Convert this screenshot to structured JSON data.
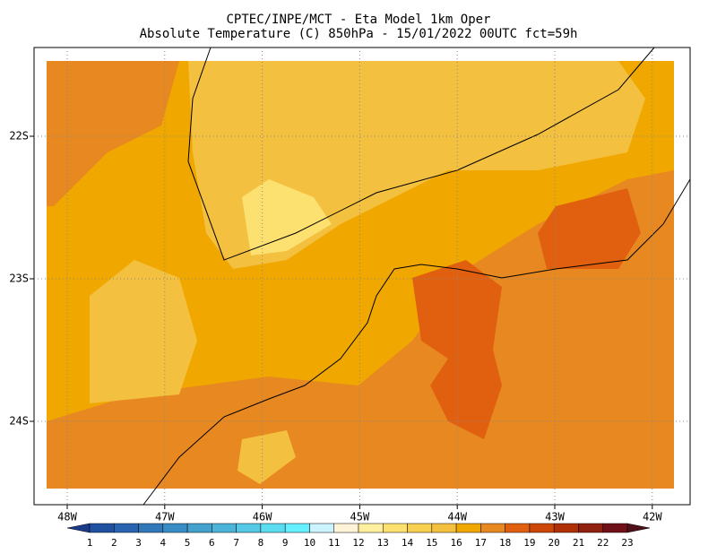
{
  "header": {
    "title": [
      "CPTEC/INPE/MCT -  Eta Model 1km Oper",
      "Absolute Temperature (C) 850hPa - 15/01/2022 00UTC fct=59h"
    ]
  },
  "map": {
    "lon_labels": [
      "48W",
      "47W",
      "46W",
      "45W",
      "44W",
      "43W",
      "42W"
    ],
    "lat_labels": [
      "22S",
      "23S",
      "24S"
    ]
  },
  "colorbar": {
    "labels": [
      "1",
      "2",
      "3",
      "4",
      "5",
      "6",
      "7",
      "8",
      "9",
      "10",
      "11",
      "12",
      "13",
      "14",
      "15",
      "16",
      "17",
      "18",
      "19",
      "20",
      "21",
      "22",
      "23"
    ],
    "colors": [
      "#1a3a8a",
      "#2050a0",
      "#2a64b0",
      "#3278b8",
      "#3a8cc4",
      "#44a0cc",
      "#4cb4d8",
      "#54c8e4",
      "#5cdcf0",
      "#66f0ff",
      "#ccf4ff",
      "#fff4d8",
      "#fff0a0",
      "#fce070",
      "#f8d050",
      "#f4c040",
      "#f0a800",
      "#e88820",
      "#e06010",
      "#cc4808",
      "#b03008",
      "#902010",
      "#701018",
      "#501018"
    ]
  }
}
